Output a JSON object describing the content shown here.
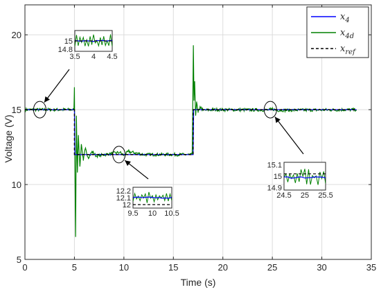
{
  "chart_data": {
    "type": "line",
    "xlabel": "Time (s)",
    "ylabel": "Voltage (V)",
    "xlim": [
      0,
      35
    ],
    "ylim": [
      5,
      22
    ],
    "xticks": [
      "0",
      "5",
      "10",
      "15",
      "20",
      "25",
      "30",
      "35"
    ],
    "yticks": [
      "5",
      "10",
      "15",
      "20"
    ],
    "xtick_values": [
      0,
      5,
      10,
      15,
      20,
      25,
      30,
      35
    ],
    "ytick_values": [
      5,
      10,
      15,
      20
    ],
    "grid": true,
    "legend_position": "top-right",
    "series": [
      {
        "name": "x_4",
        "color": "#0000ff",
        "style": "solid",
        "points": [
          [
            0,
            15
          ],
          [
            5.0,
            15
          ],
          [
            5.05,
            12
          ],
          [
            17.0,
            12
          ],
          [
            17.05,
            15
          ],
          [
            33.5,
            15
          ]
        ]
      },
      {
        "name": "x_4d",
        "color": "#008000",
        "style": "solid",
        "points": [
          [
            0,
            15
          ],
          [
            4.95,
            15
          ],
          [
            5.0,
            16.5
          ],
          [
            5.05,
            11.5
          ],
          [
            5.12,
            6.5
          ],
          [
            5.2,
            14.6
          ],
          [
            5.3,
            10.8
          ],
          [
            5.4,
            13.3
          ],
          [
            5.55,
            11.2
          ],
          [
            5.7,
            12.7
          ],
          [
            5.9,
            11.6
          ],
          [
            6.1,
            12.4
          ],
          [
            6.4,
            11.8
          ],
          [
            6.8,
            12.2
          ],
          [
            7.2,
            11.9
          ],
          [
            8,
            12
          ],
          [
            9.6,
            12.15
          ],
          [
            10.0,
            11.95
          ],
          [
            10.45,
            12.2
          ],
          [
            12,
            12
          ],
          [
            16.9,
            12
          ],
          [
            16.95,
            14.8
          ],
          [
            17.02,
            19.3
          ],
          [
            17.08,
            15.6
          ],
          [
            17.15,
            16.9
          ],
          [
            17.25,
            14.6
          ],
          [
            17.35,
            15.5
          ],
          [
            17.5,
            14.8
          ],
          [
            17.7,
            15.2
          ],
          [
            18,
            14.95
          ],
          [
            19,
            15
          ],
          [
            24.6,
            14.98
          ],
          [
            25.0,
            15.05
          ],
          [
            25.4,
            14.96
          ],
          [
            33.5,
            15
          ]
        ],
        "noise": 0.1
      },
      {
        "name": "x_ref",
        "color": "#000000",
        "style": "dashed",
        "points": [
          [
            0,
            15
          ],
          [
            5.0,
            15
          ],
          [
            5.0,
            12
          ],
          [
            17.0,
            12
          ],
          [
            17.0,
            15
          ],
          [
            33.5,
            15
          ]
        ]
      }
    ],
    "legend": [
      {
        "base": "x",
        "sub": "4"
      },
      {
        "base": "x",
        "sub": "4d"
      },
      {
        "base": "x",
        "sub": "ref"
      }
    ],
    "insets": [
      {
        "xlim": [
          3.5,
          4.5
        ],
        "ylim": [
          14.75,
          15.25
        ],
        "xticks": [
          "3.5",
          "4",
          "4.5"
        ],
        "xtick_values": [
          3.5,
          4,
          4.5
        ],
        "yticks": [
          "14.8",
          "15"
        ],
        "ytick_values": [
          14.8,
          15
        ],
        "ref": 15,
        "x4": 15,
        "x4d_mean": 15
      },
      {
        "xlim": [
          9.5,
          10.5
        ],
        "ylim": [
          11.95,
          12.25
        ],
        "xticks": [
          "9.5",
          "10",
          "10.5"
        ],
        "xtick_values": [
          9.5,
          10,
          10.5
        ],
        "yticks": [
          "12.2",
          "12.1",
          "12"
        ],
        "ytick_values": [
          12.2,
          12.1,
          12
        ],
        "ref": 12,
        "x4": 12.1,
        "x4d_mean": 12.1
      },
      {
        "xlim": [
          24.5,
          25.5
        ],
        "ylim": [
          14.88,
          15.12
        ],
        "xticks": [
          "24.5",
          "25",
          "25.5"
        ],
        "xtick_values": [
          24.5,
          25,
          25.5
        ],
        "yticks": [
          "15.1",
          "15",
          "14.9"
        ],
        "ytick_values": [
          15.1,
          15,
          14.9
        ],
        "ref": 15.02,
        "x4": 14.99,
        "x4d_mean": 15.0
      }
    ],
    "annotation_regions": [
      {
        "x": 1.5,
        "y": 15
      },
      {
        "x": 9.5,
        "y": 12
      },
      {
        "x": 24.8,
        "y": 15
      }
    ]
  }
}
